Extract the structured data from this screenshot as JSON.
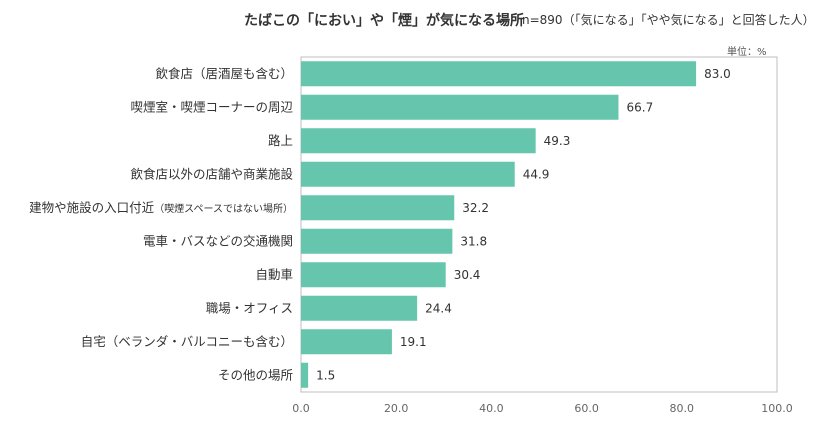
{
  "chart_data": {
    "type": "bar",
    "orientation": "horizontal",
    "title": "たばこの「におい」や「煙」が気になる場所",
    "note": "n=890（「気になる」「やや気になる」と回答した人）",
    "unit_label": "単位：%",
    "categories": [
      {
        "main": "飲食店（居酒屋も含む）",
        "sub": ""
      },
      {
        "main": "喫煙室・喫煙コーナーの周辺",
        "sub": ""
      },
      {
        "main": "路上",
        "sub": ""
      },
      {
        "main": "飲食店以外の店舗や商業施設",
        "sub": ""
      },
      {
        "main": "建物や施設の入口付近",
        "sub": "（喫煙スペースではない場所）"
      },
      {
        "main": "電車・バスなどの交通機関",
        "sub": ""
      },
      {
        "main": "自動車",
        "sub": ""
      },
      {
        "main": "職場・オフィス",
        "sub": ""
      },
      {
        "main": "自宅（ベランダ・バルコニーも含む）",
        "sub": ""
      },
      {
        "main": "その他の場所",
        "sub": ""
      }
    ],
    "values": [
      83.0,
      66.7,
      49.3,
      44.9,
      32.2,
      31.8,
      30.4,
      24.4,
      19.1,
      1.5
    ],
    "value_labels": [
      "83.0",
      "66.7",
      "49.3",
      "44.9",
      "32.2",
      "31.8",
      "30.4",
      "24.4",
      "19.1",
      "1.5"
    ],
    "xlim": [
      0,
      100
    ],
    "xticks": [
      "0.0",
      "20.0",
      "40.0",
      "60.0",
      "80.0",
      "100.0"
    ],
    "grid": false,
    "bar_color": "#66c6ad"
  }
}
